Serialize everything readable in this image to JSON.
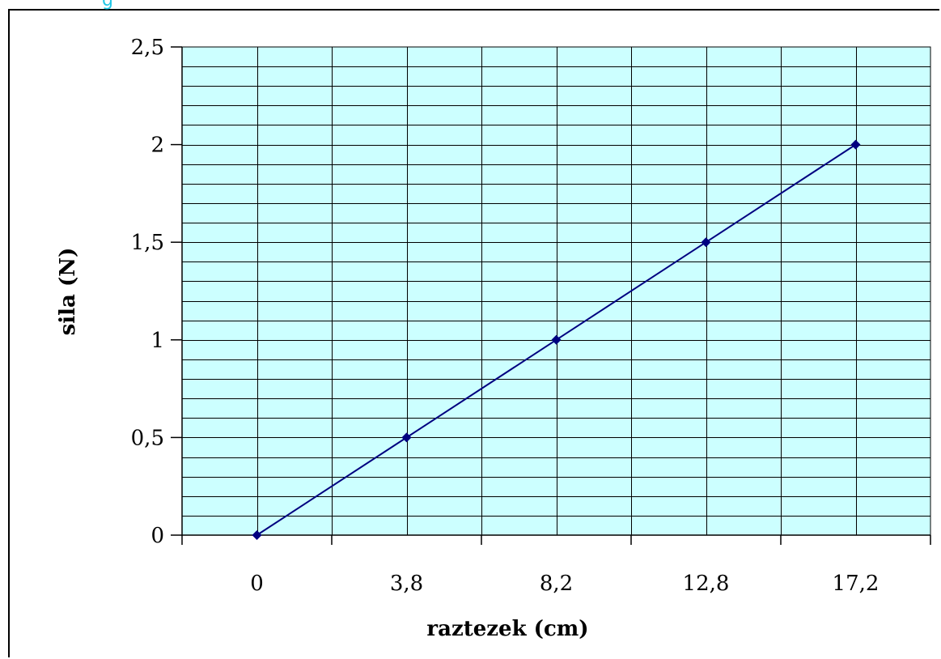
{
  "corner_fragment": "g",
  "chart_data": {
    "type": "line",
    "title": "",
    "xlabel": "raztezek (cm)",
    "ylabel": "sila (N)",
    "categories": [
      "0",
      "3,8",
      "8,2",
      "12,8",
      "17,2"
    ],
    "series": [
      {
        "name": "",
        "values": [
          0,
          0.5,
          1,
          1.5,
          2
        ],
        "color": "#000080"
      }
    ],
    "ylim": [
      0,
      2.5
    ],
    "y_ticks": [
      "0",
      "0,5",
      "1",
      "1,5",
      "2",
      "2,5"
    ],
    "grid": true,
    "legend": "none",
    "colors": {
      "plot_background": "#ccffff",
      "grid": "#000000",
      "line": "#000080",
      "marker": "#000080"
    }
  }
}
